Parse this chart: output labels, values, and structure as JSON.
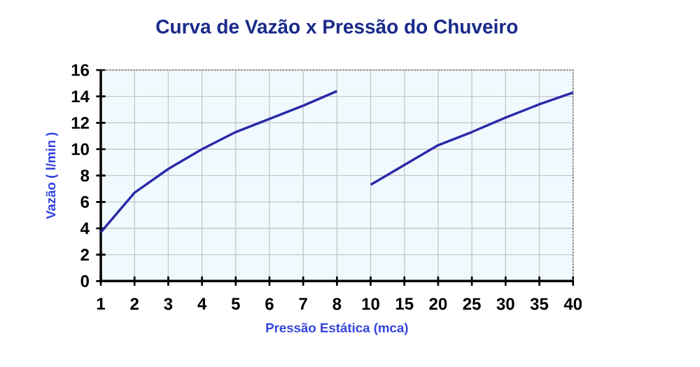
{
  "chart_data": {
    "type": "line",
    "title": "Curva de Vazão x Pressão do Chuveiro",
    "xlabel": "Pressão Estática (mca)",
    "ylabel": "Vazão ( l/min )",
    "categories": [
      "1",
      "2",
      "3",
      "4",
      "5",
      "6",
      "7",
      "8",
      "10",
      "15",
      "20",
      "25",
      "30",
      "35",
      "40"
    ],
    "series": [
      {
        "color": "#2a2aa8",
        "values": [
          3.7,
          6.7,
          8.5,
          10.0,
          11.3,
          12.3,
          13.3,
          14.4,
          null,
          null,
          null,
          null,
          null,
          null,
          null
        ]
      },
      {
        "color": "#2a2aa8",
        "values": [
          null,
          null,
          null,
          null,
          null,
          null,
          null,
          null,
          7.3,
          8.8,
          10.3,
          11.3,
          12.4,
          13.4,
          14.3
        ]
      }
    ],
    "ylim": [
      0,
      16
    ],
    "yticks": [
      0,
      2,
      4,
      6,
      8,
      10,
      12,
      14,
      16
    ],
    "grid": true,
    "marker": "none",
    "line_style": "solid"
  }
}
